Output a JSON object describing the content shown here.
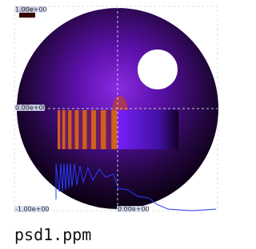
{
  "image": {
    "caption": "psd1.ppm",
    "labels": {
      "top_left": "1.00e+00",
      "middle_left": "0.00e+00",
      "bottom_left": "-1.00e+00",
      "bottom_center": "0.00e+00"
    }
  }
}
